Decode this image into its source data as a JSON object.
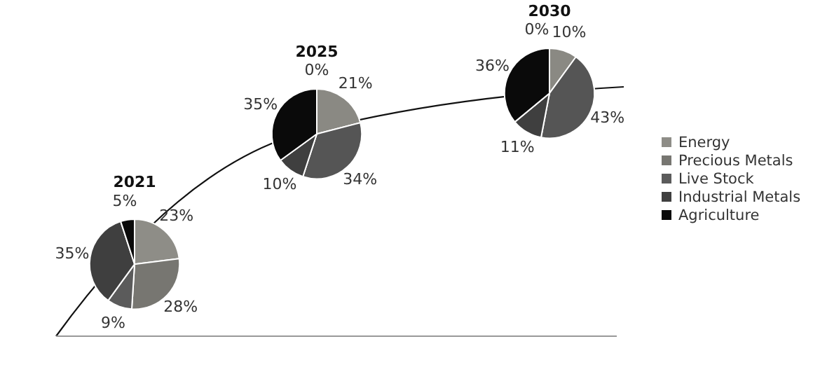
{
  "chart_data": [
    {
      "type": "pie",
      "title": "2021",
      "categories": [
        "Energy",
        "Precious Metals",
        "Live Stock",
        "Industrial Metals",
        "Agriculture"
      ],
      "values": [
        23,
        28,
        9,
        35,
        5
      ],
      "value_labels": [
        "23%",
        "28%",
        "9%",
        "35%",
        "5%"
      ],
      "colors": [
        "#8e8d87",
        "#777671",
        "#5b5b5b",
        "#3f3f3f",
        "#0a0a0a"
      ],
      "legend": "right"
    },
    {
      "type": "pie",
      "title": "2025",
      "categories": [
        null,
        null,
        null,
        null,
        null
      ],
      "values": [
        21,
        34,
        10,
        35,
        0
      ],
      "value_labels": [
        "21%",
        "34%",
        "10%",
        "35%",
        "0%"
      ],
      "colors": [
        "#8a8983",
        "#555555",
        "#3f3f3f",
        "#0a0a0a",
        "#000000"
      ]
    },
    {
      "type": "pie",
      "title": "2030",
      "categories": [
        null,
        null,
        null,
        null,
        null
      ],
      "values": [
        10,
        43,
        11,
        36,
        0
      ],
      "value_labels": [
        "10%",
        "43%",
        "11%",
        "36%",
        "0%"
      ],
      "colors": [
        "#8a8983",
        "#555555",
        "#3f3f3f",
        "#0a0a0a",
        "#000000"
      ]
    }
  ]
}
